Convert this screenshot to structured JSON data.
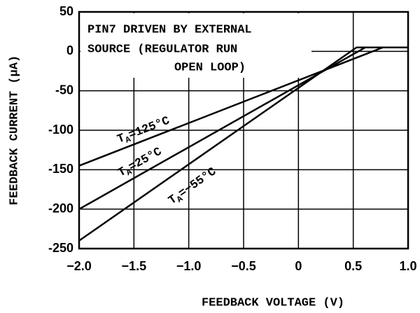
{
  "chart_data": {
    "type": "line",
    "xlabel": "FEEDBACK VOLTAGE (V)",
    "ylabel": "FEEDBACK CURRENT (μA)",
    "annotation": [
      "PIN7 DRIVEN BY EXTERNAL",
      "SOURCE (REGULATOR RUN",
      "OPEN LOOP)"
    ],
    "xlim": [
      -2,
      1
    ],
    "ylim": [
      -250,
      50
    ],
    "xticks": [
      {
        "value": -2,
        "label": "−2.0"
      },
      {
        "value": -1.5,
        "label": "−1.5"
      },
      {
        "value": -1,
        "label": "−1.0"
      },
      {
        "value": -0.5,
        "label": "−0.5"
      },
      0,
      0.5,
      {
        "value": 1,
        "label": "1.0"
      }
    ],
    "yticks": [
      50,
      0,
      -50,
      -100,
      -150,
      -200,
      -250
    ],
    "grid": true,
    "series": [
      {
        "name": "TA=125°C",
        "color": "#000000",
        "x": [
          -2,
          0.77,
          1
        ],
        "values": [
          -145,
          5,
          5
        ]
      },
      {
        "name": "TA=25°C",
        "color": "#000000",
        "x": [
          -2,
          0.61,
          1
        ],
        "values": [
          -200,
          5,
          5
        ]
      },
      {
        "name": "TA=−55°C",
        "color": "#000000",
        "x": [
          -2,
          0.53,
          1
        ],
        "values": [
          -240,
          5,
          5
        ]
      }
    ]
  }
}
